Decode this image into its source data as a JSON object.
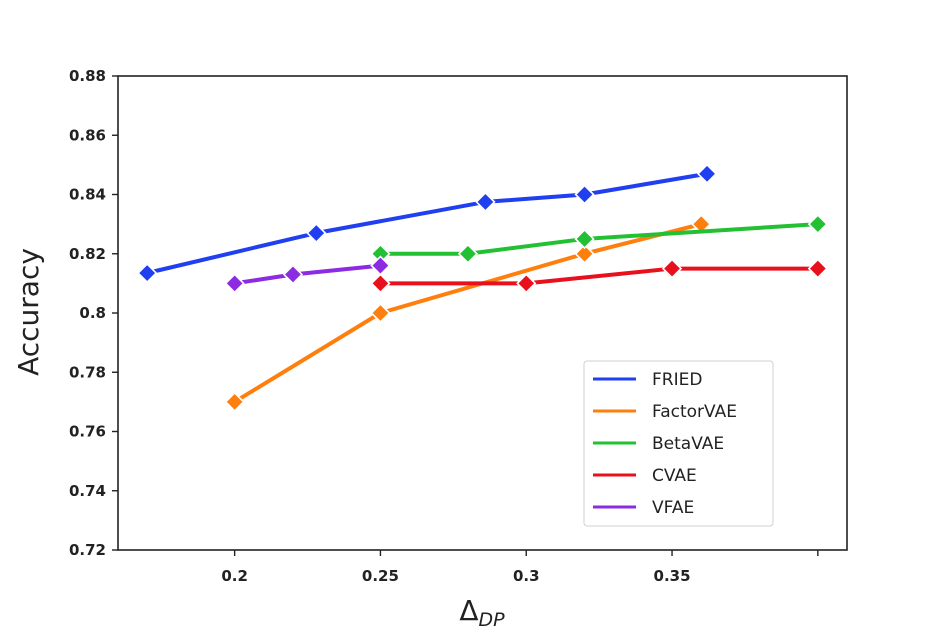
{
  "chart_data": {
    "type": "line",
    "title": "",
    "xlabel": "Δ",
    "xlabel_subscript": "DP",
    "ylabel": "Accuracy",
    "xlim": [
      0.16,
      0.41
    ],
    "ylim": [
      0.72,
      0.88
    ],
    "x_ticks": [
      0.2,
      0.25,
      0.3,
      0.35,
      0.4
    ],
    "x_tick_labels": [
      "0.2",
      "0.25",
      "0.3",
      "0.35",
      ""
    ],
    "y_ticks": [
      0.72,
      0.74,
      0.76,
      0.78,
      0.8,
      0.82,
      0.84,
      0.86,
      0.88
    ],
    "y_tick_labels": [
      "0.72",
      "0.74",
      "0.76",
      "0.78",
      "0.8",
      "0.82",
      "0.84",
      "0.86",
      "0.88"
    ],
    "grid": false,
    "legend_position": "lower-right",
    "series": [
      {
        "name": "FRIED",
        "color": "#1f3ff0",
        "x": [
          0.17,
          0.228,
          0.286,
          0.32,
          0.362
        ],
        "y": [
          0.8135,
          0.827,
          0.8375,
          0.84,
          0.847
        ]
      },
      {
        "name": "FactorVAE",
        "color": "#ff7f0e",
        "x": [
          0.2,
          0.25,
          0.32,
          0.36
        ],
        "y": [
          0.77,
          0.8,
          0.82,
          0.83
        ]
      },
      {
        "name": "BetaVAE",
        "color": "#22c032",
        "x": [
          0.25,
          0.28,
          0.32,
          0.4
        ],
        "y": [
          0.82,
          0.82,
          0.825,
          0.83
        ]
      },
      {
        "name": "CVAE",
        "color": "#e8101c",
        "x": [
          0.25,
          0.3,
          0.35,
          0.4
        ],
        "y": [
          0.81,
          0.81,
          0.815,
          0.815
        ]
      },
      {
        "name": "VFAE",
        "color": "#8b2be2",
        "x": [
          0.2,
          0.22,
          0.25
        ],
        "y": [
          0.81,
          0.813,
          0.816
        ]
      }
    ]
  }
}
